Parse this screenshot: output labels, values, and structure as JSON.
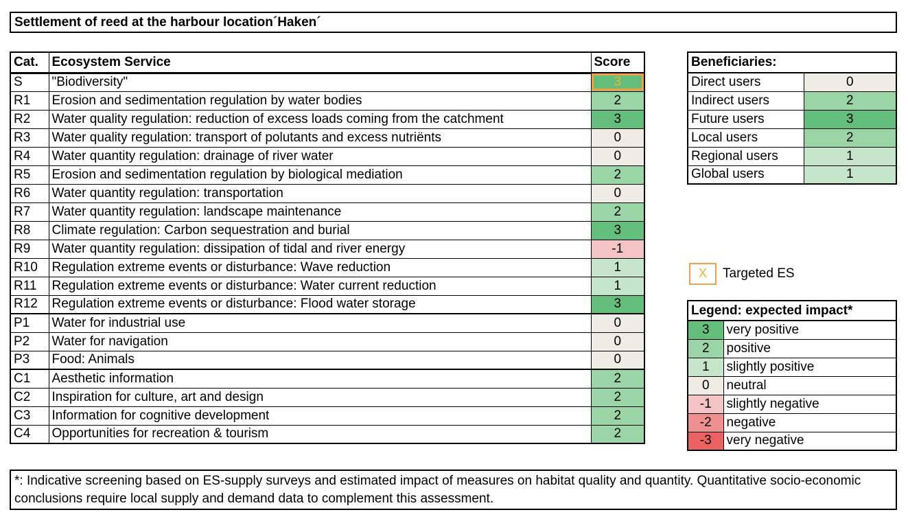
{
  "title": "Settlement of reed at the harbour location´Haken´",
  "es_table": {
    "headers": {
      "cat": "Cat.",
      "service": "Ecosystem Service",
      "score": "Score"
    },
    "rows": [
      {
        "cat": "S",
        "service": "\"Biodiversity\"",
        "score": "3"
      },
      {
        "cat": "R1",
        "service": "Erosion and sedimentation regulation by water bodies",
        "score": "2"
      },
      {
        "cat": "R2",
        "service": "Water quality regulation: reduction of excess loads coming from the catchment",
        "score": "3"
      },
      {
        "cat": "R3",
        "service": "Water quality regulation: transport of polutants and excess nutriënts",
        "score": "0"
      },
      {
        "cat": "R4",
        "service": "Water quantity regulation: drainage of river water",
        "score": "0"
      },
      {
        "cat": "R5",
        "service": "Erosion and sedimentation regulation by biological mediation",
        "score": "2"
      },
      {
        "cat": "R6",
        "service": "Water quantity regulation: transportation",
        "score": "0"
      },
      {
        "cat": "R7",
        "service": "Water quantity regulation: landscape maintenance",
        "score": "2"
      },
      {
        "cat": "R8",
        "service": "Climate regulation: Carbon sequestration and burial",
        "score": "3"
      },
      {
        "cat": "R9",
        "service": "Water quantity regulation: dissipation of tidal and river energy",
        "score": "-1"
      },
      {
        "cat": "R10",
        "service": "Regulation extreme events or disturbance: Wave reduction",
        "score": "1"
      },
      {
        "cat": "R11",
        "service": "Regulation extreme events or disturbance: Water current reduction",
        "score": "1"
      },
      {
        "cat": "R12",
        "service": "Regulation extreme events or disturbance: Flood water storage",
        "score": "3"
      },
      {
        "cat": "P1",
        "service": "Water for industrial use",
        "score": "0"
      },
      {
        "cat": "P2",
        "service": "Water for navigation",
        "score": "0"
      },
      {
        "cat": "P3",
        "service": "Food: Animals",
        "score": "0"
      },
      {
        "cat": "C1",
        "service": "Aesthetic information",
        "score": "2"
      },
      {
        "cat": "C2",
        "service": "Inspiration for culture, art and design",
        "score": "2"
      },
      {
        "cat": "C3",
        "service": "Information for cognitive development",
        "score": "2"
      },
      {
        "cat": "C4",
        "service": "Opportunities for recreation & tourism",
        "score": "2"
      }
    ]
  },
  "beneficiaries": {
    "header": "Beneficiaries:",
    "rows": [
      {
        "label": "Direct users",
        "value": "0"
      },
      {
        "label": "Indirect users",
        "value": "2"
      },
      {
        "label": "Future users",
        "value": "3"
      },
      {
        "label": "Local users",
        "value": "2"
      },
      {
        "label": "Regional users",
        "value": "1"
      },
      {
        "label": "Global users",
        "value": "1"
      }
    ]
  },
  "targeted": {
    "marker": "X",
    "label": "Targeted ES"
  },
  "legend": {
    "header": "Legend: expected  impact*",
    "rows": [
      {
        "value": "3",
        "label": "very positive"
      },
      {
        "value": "2",
        "label": "positive"
      },
      {
        "value": "1",
        "label": "slightly positive"
      },
      {
        "value": "0",
        "label": "neutral"
      },
      {
        "value": "-1",
        "label": "slightly negative"
      },
      {
        "value": "-2",
        "label": "negative"
      },
      {
        "value": "-3",
        "label": "very negative"
      }
    ]
  },
  "colors": {
    "3": "#63be7b",
    "2": "#9ad5a6",
    "1": "#c6e6cc",
    "0": "#efece4",
    "-1": "#f4c3c3",
    "-2": "#f08f8f",
    "-3": "#eb6262",
    "targeted": "#f5a040"
  },
  "footnote": "*: Indicative screening based on ES-supply surveys and estimated impact of measures on habitat quality and quantity. Quantitative socio-economic conclusions require local supply and demand data to complement this assessment."
}
